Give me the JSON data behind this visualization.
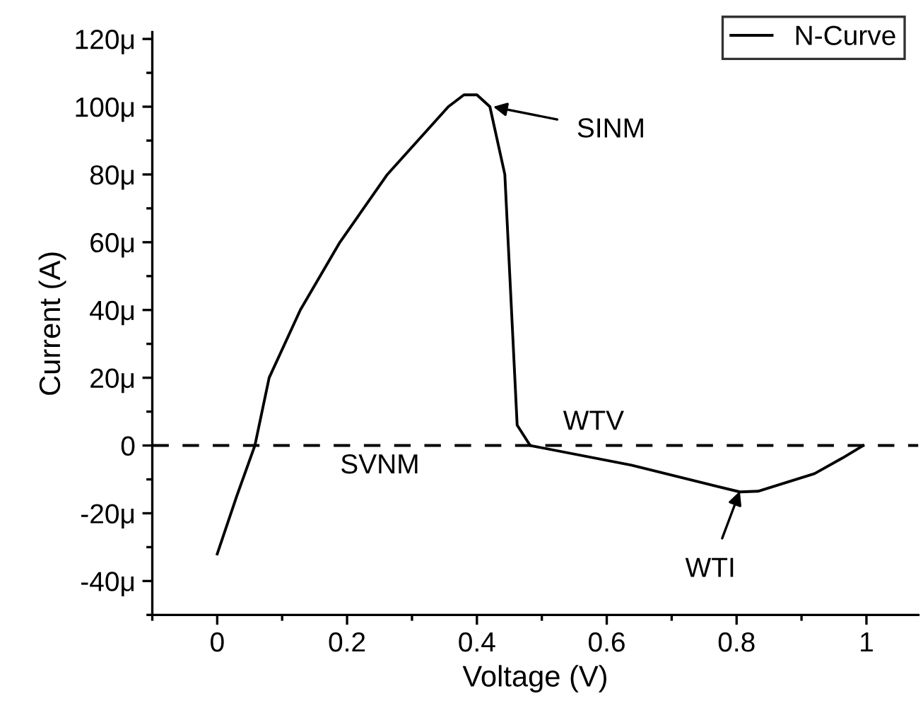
{
  "chart_data": {
    "type": "line",
    "xlabel": "Voltage (V)",
    "ylabel": "Current (A)",
    "x": [
      0,
      0.03,
      0.058,
      0.08,
      0.128,
      0.189,
      0.262,
      0.356,
      0.38,
      0.4,
      0.42,
      0.443,
      0.462,
      0.482,
      0.638,
      0.805,
      0.833,
      0.92,
      0.963,
      0.995
    ],
    "series": [
      {
        "name": "N-Curve",
        "color": "#000000",
        "values": [
          -32,
          -15,
          0,
          20,
          40,
          60,
          80,
          100,
          103.5,
          103.5,
          100,
          80,
          6,
          0,
          -5.8,
          -13.7,
          -13.5,
          -8.3,
          -3.7,
          0
        ]
      }
    ],
    "xlim": [
      -0.1,
      1.08
    ],
    "xticks": [
      0,
      0.2,
      0.4,
      0.6,
      0.8,
      1
    ],
    "ylim": [
      -50,
      122
    ],
    "yticks": [
      {
        "value": -40,
        "label": "-40μ"
      },
      {
        "value": -20,
        "label": "-20μ"
      },
      0,
      {
        "value": 20,
        "label": "20μ"
      },
      {
        "value": 40,
        "label": "40μ"
      },
      {
        "value": 60,
        "label": "60μ"
      },
      {
        "value": 80,
        "label": "80μ"
      },
      {
        "value": 100,
        "label": "100μ"
      },
      {
        "value": 120,
        "label": "120μ"
      }
    ],
    "ref_lines": [
      {
        "axis": "y",
        "value": 0,
        "color": "#000000",
        "line_style": "dashed"
      }
    ],
    "annotations": [
      {
        "text": "SINM",
        "x": 0.425,
        "y": 100
      },
      "SVNM",
      "WTV",
      {
        "text": "WTI",
        "x": 0.805,
        "y": -13.5
      }
    ],
    "legend": "top right",
    "marker": "none",
    "line_style": "solid",
    "grid": false
  }
}
